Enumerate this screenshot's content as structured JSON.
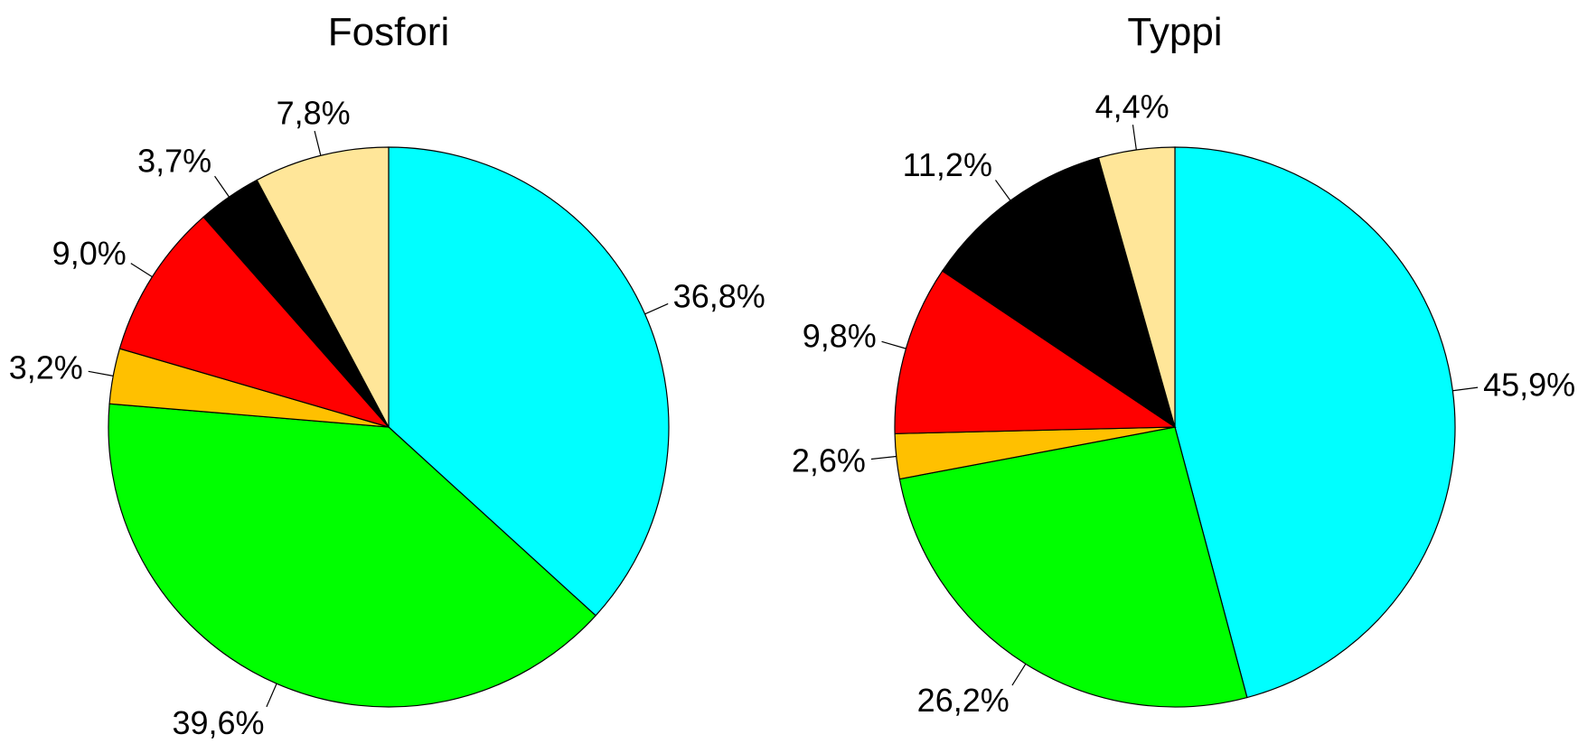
{
  "chart_data": [
    {
      "type": "pie",
      "title": "Fosfori",
      "slices": [
        {
          "value": 36.8,
          "label": "36,8%",
          "color": "#00FFFF"
        },
        {
          "value": 39.6,
          "label": "39,6%",
          "color": "#00FF00"
        },
        {
          "value": 3.2,
          "label": "3,2%",
          "color": "#FFC000"
        },
        {
          "value": 9.0,
          "label": "9,0%",
          "color": "#FF0000"
        },
        {
          "value": 3.7,
          "label": "3,7%",
          "color": "#000000"
        },
        {
          "value": 7.8,
          "label": "7,8%",
          "color": "#FFE699"
        }
      ],
      "start": "12 o'clock",
      "direction": "clockwise",
      "legend": "none"
    },
    {
      "type": "pie",
      "title": "Typpi",
      "slices": [
        {
          "value": 45.9,
          "label": "45,9%",
          "color": "#00FFFF"
        },
        {
          "value": 26.2,
          "label": "26,2%",
          "color": "#00FF00"
        },
        {
          "value": 2.6,
          "label": "2,6%",
          "color": "#FFC000"
        },
        {
          "value": 9.8,
          "label": "9,8%",
          "color": "#FF0000"
        },
        {
          "value": 11.2,
          "label": "11,2%",
          "color": "#000000"
        },
        {
          "value": 4.4,
          "label": "4,4%",
          "color": "#FFE699"
        }
      ],
      "start": "12 o'clock",
      "direction": "clockwise",
      "legend": "none"
    }
  ]
}
